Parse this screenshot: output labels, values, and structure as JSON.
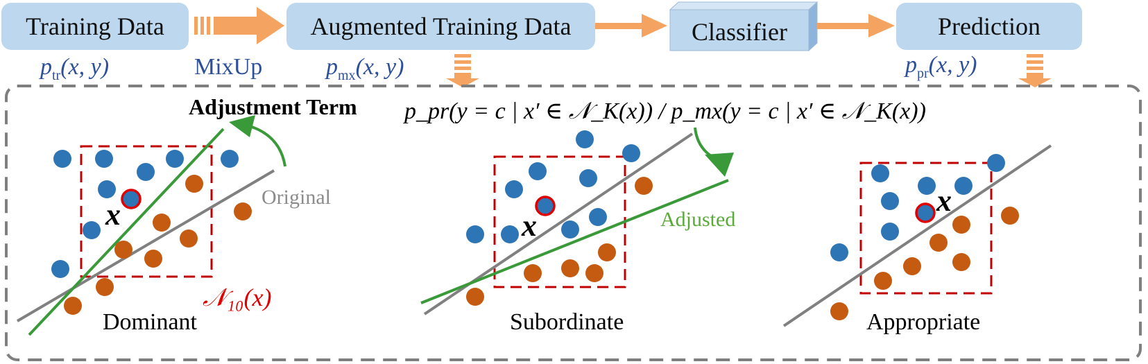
{
  "pipeline": {
    "training_data": "Training Data",
    "augmented_data": "Augmented Training Data",
    "classifier": "Classifier",
    "prediction": "Prediction",
    "mixup": "MixUp"
  },
  "distributions": {
    "tr": {
      "p": "p",
      "sub": "tr",
      "args": "(x, y)"
    },
    "mx": {
      "p": "p",
      "sub": "mx",
      "args": "(x, y)"
    },
    "pr": {
      "p": "p",
      "sub": "pr",
      "args": "(x, y)"
    }
  },
  "adjustment": {
    "title": "Adjustment Term",
    "formula": "p_pr(y = c | x′ ∈ 𝒩_K(x)) / p_mx(y = c | x′ ∈ 𝒩_K(x))"
  },
  "panels": {
    "dominant": "Dominant",
    "subordinate": "Subordinate",
    "appropriate": "Appropriate",
    "original": "Original",
    "adjusted": "Adjusted",
    "x_label": "x",
    "neighborhood_label": "𝒩₁₀(x)"
  },
  "colors": {
    "box_fill": "#bdd7ee",
    "arrow_orange": "#f4a460",
    "blue_point": "#2e75b6",
    "orange_point": "#c55a11",
    "line_gray": "#808080",
    "line_green": "#3a9a3a",
    "neighborhood_red": "#c00000",
    "label_blue": "#2e4f9a"
  }
}
